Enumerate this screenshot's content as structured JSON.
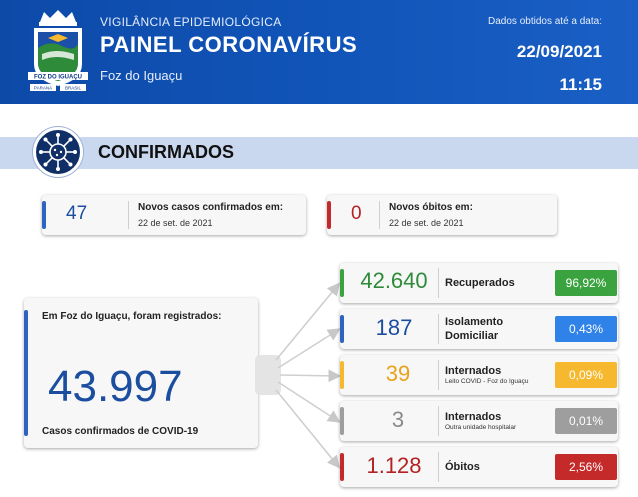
{
  "header": {
    "subtitle": "VIGILÂNCIA EPIDEMIOLÓGICA",
    "title": "PAINEL CORONAVÍRUS",
    "city": "Foz do Iguaçu",
    "data_label": "Dados obtidos até a data:",
    "date": "22/09/2021",
    "time": "11:15",
    "logo": {
      "banner": "FOZ DO IGUAÇU",
      "left": "PARANÁ",
      "right": "BRASIL",
      "icon": "city-coat-of-arms-icon"
    }
  },
  "section": {
    "title": "CONFIRMADOS",
    "icon": "virus-icon"
  },
  "new_cases": {
    "value": "47",
    "label": "Novos casos confirmados em:",
    "date": "22 de set. de 2021",
    "color": "#2f63c0"
  },
  "new_deaths": {
    "value": "0",
    "label": "Novos óbitos em:",
    "date": "22 de set. de 2021",
    "color": "#c42a2a"
  },
  "total": {
    "heading": "Em Foz do Iguaçu, foram registrados:",
    "value": "43.997",
    "caption": "Casos confirmados de COVID-19",
    "color": "#2f63c0"
  },
  "breakdown": [
    {
      "value": "42.640",
      "label": "Recuperados",
      "sub": "",
      "percent": "96,92%",
      "color": "#3aa33f",
      "badge_color": "#3aa33f",
      "value_color": "#2e8b3a"
    },
    {
      "value": "187",
      "label": "Isolamento Domiciliar",
      "sub": "",
      "percent": "0,43%",
      "color": "#2f63c0",
      "badge_color": "#2f82e8",
      "value_color": "#1c4ea0"
    },
    {
      "value": "39",
      "label": "Internados",
      "sub": "Leito COVID - Foz do Iguaçu",
      "percent": "0,09%",
      "color": "#f5b82e",
      "badge_color": "#f5b82e",
      "value_color": "#e9a21a"
    },
    {
      "value": "3",
      "label": "Internados",
      "sub": "Outra unidade hospitalar",
      "percent": "0,01%",
      "color": "#9e9e9e",
      "badge_color": "#9e9e9e",
      "value_color": "#8a8a8a"
    },
    {
      "value": "1.128",
      "label": "Óbitos",
      "sub": "",
      "percent": "2,56%",
      "color": "#c42a2a",
      "badge_color": "#c42a2a",
      "value_color": "#b22222"
    }
  ]
}
